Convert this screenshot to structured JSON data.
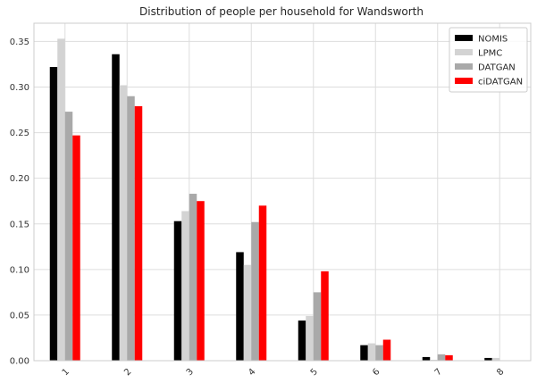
{
  "chart_data": {
    "type": "bar",
    "title": "Distribution of people per household for Wandsworth",
    "xlabel": "",
    "ylabel": "",
    "categories": [
      "1",
      "2",
      "3",
      "4",
      "5",
      "6",
      "7",
      "8"
    ],
    "ylim": [
      0,
      0.37
    ],
    "yticks": [
      0.0,
      0.05,
      0.1,
      0.15,
      0.2,
      0.25,
      0.3,
      0.35
    ],
    "ytick_labels": [
      "0.00",
      "0.05",
      "0.10",
      "0.15",
      "0.20",
      "0.25",
      "0.30",
      "0.35"
    ],
    "grid": true,
    "legend_position": "top-right",
    "series": [
      {
        "name": "NOMIS",
        "color": "#000000",
        "values": [
          0.322,
          0.336,
          0.153,
          0.119,
          0.044,
          0.017,
          0.004,
          0.003
        ]
      },
      {
        "name": "LPMC",
        "color": "#d3d3d3",
        "values": [
          0.353,
          0.302,
          0.164,
          0.105,
          0.049,
          0.019,
          0.001,
          0.003
        ]
      },
      {
        "name": "DATGAN",
        "color": "#a9a9a9",
        "values": [
          0.273,
          0.29,
          0.183,
          0.152,
          0.075,
          0.017,
          0.007,
          0.0
        ]
      },
      {
        "name": "ciDATGAN",
        "color": "#ff0000",
        "values": [
          0.247,
          0.279,
          0.175,
          0.17,
          0.098,
          0.023,
          0.006,
          0.0
        ]
      }
    ]
  }
}
